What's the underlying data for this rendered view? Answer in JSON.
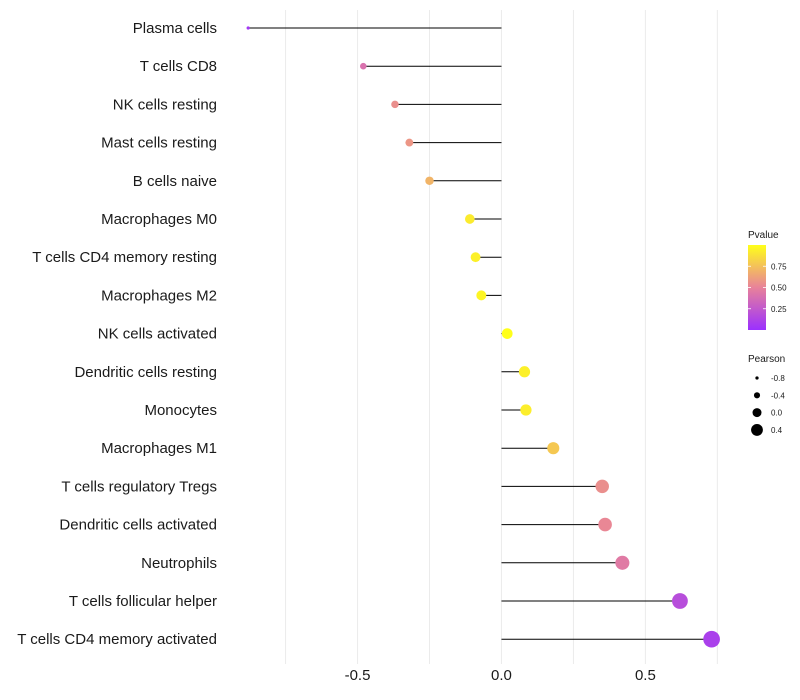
{
  "chart_data": {
    "type": "lollipop",
    "title": "",
    "xlabel": "",
    "ylabel": "",
    "xlim": [
      -0.95,
      0.78
    ],
    "xticks": [
      -0.5,
      0.0,
      0.5
    ],
    "xtick_labels": [
      "-0.5",
      "0.0",
      "0.5"
    ],
    "baseline": 0,
    "grid": true,
    "categories": [
      "Plasma cells",
      "T cells CD8",
      "NK cells resting",
      "Mast cells resting",
      "B cells naive",
      "Macrophages M0",
      "T cells CD4 memory resting",
      "Macrophages M2",
      "NK cells activated",
      "Dendritic cells resting",
      "Monocytes",
      "Macrophages M1",
      "T cells regulatory  Tregs ",
      "Dendritic cells activated",
      "Neutrophils",
      "T cells follicular helper",
      "T cells CD4 memory activated"
    ],
    "pearson": [
      -0.88,
      -0.48,
      -0.37,
      -0.32,
      -0.25,
      -0.11,
      -0.09,
      -0.07,
      0.02,
      0.08,
      0.085,
      0.18,
      0.35,
      0.36,
      0.42,
      0.62,
      0.73
    ],
    "pvalue": [
      0.05,
      0.4,
      0.55,
      0.58,
      0.7,
      0.92,
      0.94,
      0.96,
      1.0,
      0.94,
      0.93,
      0.78,
      0.55,
      0.52,
      0.45,
      0.18,
      0.1
    ],
    "legend": {
      "color_title": "Pvalue",
      "color_scale": {
        "low": "#9b30ff",
        "mid": "#e8829a",
        "high": "#ffff1a",
        "domain": [
          0,
          1
        ]
      },
      "color_ticks": [
        0.75,
        0.5,
        0.25
      ],
      "color_tick_labels": [
        "0.75",
        "0.50",
        "0.25"
      ],
      "size_title": "Pearson",
      "size_values": [
        -0.8,
        -0.4,
        0.0,
        0.4
      ],
      "size_labels": [
        "-0.8",
        "-0.4",
        "0.0",
        "0.4"
      ],
      "size_color": "#000000"
    }
  }
}
